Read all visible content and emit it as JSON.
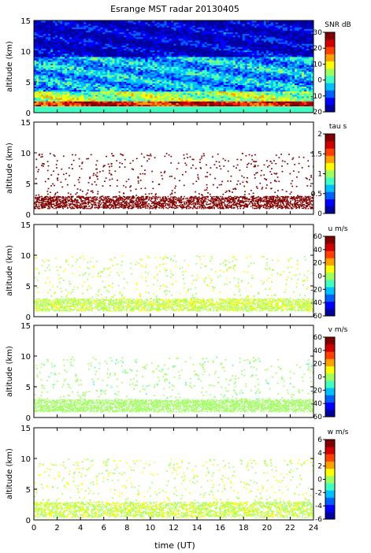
{
  "title": "Esrange MST radar 20130405",
  "xlabel": "time (UT)",
  "colors": {
    "jet": [
      "#0000a0",
      "#0000ff",
      "#0060ff",
      "#00c0ff",
      "#40ffc0",
      "#a0ff60",
      "#ffff00",
      "#ffa000",
      "#ff4000",
      "#d00000",
      "#800000"
    ],
    "background": "#ffffff",
    "axes": "#000000"
  },
  "chart_data": [
    {
      "type": "heatmap",
      "quantity": "SNR",
      "ylabel": "altitude (km)",
      "colorbar_label": "SNR dB",
      "x_range": [
        0,
        24
      ],
      "ylim": [
        0,
        15
      ],
      "clim": [
        -20,
        30
      ],
      "colorbar_ticks": [
        30,
        20,
        10,
        0,
        -10,
        -20
      ],
      "xticks": [
        0,
        2,
        4,
        6,
        8,
        10,
        12,
        14,
        16,
        18,
        20,
        22,
        24
      ],
      "yticks": [
        0,
        5,
        10,
        15
      ],
      "layers": [
        {
          "alt_range": [
            1.0,
            2.0
          ],
          "value": 22
        },
        {
          "alt_range": [
            2.0,
            3.5
          ],
          "value": 5
        },
        {
          "alt_range": [
            3.5,
            9.0
          ],
          "value": -5
        },
        {
          "alt_range": [
            9.0,
            15.0
          ],
          "value": -16
        }
      ],
      "data_present": "00:00-24:00, 1-15 km"
    },
    {
      "type": "heatmap",
      "quantity": "tau",
      "ylabel": "altitude (km)",
      "colorbar_label": "tau s",
      "x_range": [
        0,
        24
      ],
      "ylim": [
        0,
        15
      ],
      "clim": [
        0,
        2
      ],
      "colorbar_ticks": [
        2,
        1.5,
        1,
        0.5,
        0
      ],
      "xticks": [
        0,
        2,
        4,
        6,
        8,
        10,
        12,
        14,
        16,
        18,
        20,
        22,
        24
      ],
      "yticks": [
        0,
        5,
        10,
        15
      ],
      "dominant_value": 2,
      "data_present": "dense 1-3 km, sparse 3-10 km"
    },
    {
      "type": "heatmap",
      "quantity": "u",
      "ylabel": "altitude (km)",
      "colorbar_label": "u m/s",
      "x_range": [
        0,
        24
      ],
      "ylim": [
        0,
        15
      ],
      "clim": [
        -60,
        60
      ],
      "colorbar_ticks": [
        60,
        40,
        20,
        0,
        -20,
        -40,
        -60
      ],
      "xticks": [
        0,
        2,
        4,
        6,
        8,
        10,
        12,
        14,
        16,
        18,
        20,
        22,
        24
      ],
      "yticks": [
        0,
        5,
        10,
        15
      ],
      "dominant_value": 5,
      "data_present": "dense 1-3 km, sparse 3-10 km"
    },
    {
      "type": "heatmap",
      "quantity": "v",
      "ylabel": "altitude (km)",
      "colorbar_label": "v m/s",
      "x_range": [
        0,
        24
      ],
      "ylim": [
        0,
        15
      ],
      "clim": [
        -60,
        60
      ],
      "colorbar_ticks": [
        60,
        40,
        20,
        0,
        -20,
        -40,
        -60
      ],
      "xticks": [
        0,
        2,
        4,
        6,
        8,
        10,
        12,
        14,
        16,
        18,
        20,
        22,
        24
      ],
      "yticks": [
        0,
        5,
        10,
        15
      ],
      "dominant_value": -3,
      "data_present": "dense 1-3 km, sparse 3-10 km"
    },
    {
      "type": "heatmap",
      "quantity": "w",
      "ylabel": "altitude (km)",
      "colorbar_label": "w m/s",
      "x_range": [
        0,
        24
      ],
      "ylim": [
        0,
        15
      ],
      "clim": [
        -6,
        6
      ],
      "colorbar_ticks": [
        6,
        4,
        2,
        0,
        -2,
        -4,
        -6
      ],
      "xticks": [
        0,
        2,
        4,
        6,
        8,
        10,
        12,
        14,
        16,
        18,
        20,
        22,
        24
      ],
      "yticks": [
        0,
        5,
        10,
        15
      ],
      "dominant_value": 0.5,
      "data_present": "dense 0.5-3 km, sparse 3-10 km"
    }
  ]
}
